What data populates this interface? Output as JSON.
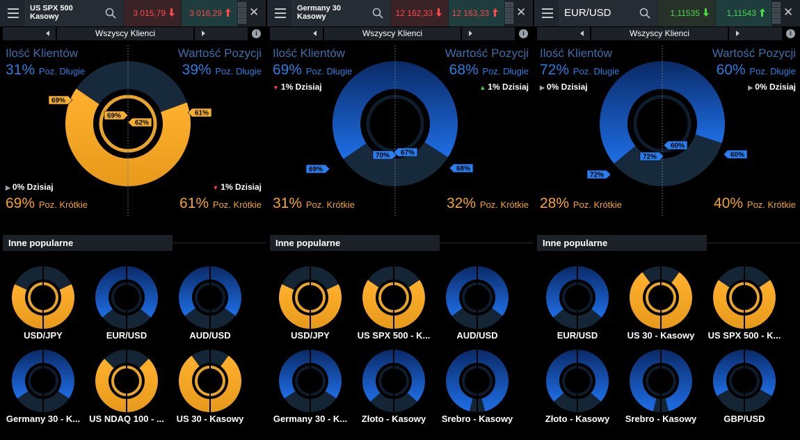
{
  "colors": {
    "long": "#1e6ee6",
    "short": "#f5a623",
    "ring_bg": "#142433",
    "panel_bg": "#000000",
    "header": "#1c2127"
  },
  "icons": {
    "menu": "hamburger-icon",
    "search": "search-icon",
    "close": "close-icon",
    "info": "info-icon",
    "down": "price-down-arrow-icon",
    "up": "price-up-arrow-icon"
  },
  "panels": [
    {
      "symbol": "US SPX 500 Kasowy",
      "symbol_line1": "US SPX 500",
      "symbol_line2": "Kasowy",
      "bid": "3 015,79",
      "bid_dir": "down",
      "ask": "3 016,29",
      "ask_dir": "up",
      "nav_label": "Wszyscy Klienci",
      "clients_title": "Ilość Klientów",
      "value_title": "Wartość Pozycji",
      "clients_long_pct": "31%",
      "value_long_pct": "39%",
      "long_label": "Poz. Długie",
      "clients_short_pct": "69%",
      "value_short_pct": "61%",
      "short_label": "Poz. Krótkie",
      "today_left": "0% Dzisiaj",
      "today_left_dir": "flat",
      "today_right": "1% Dzisiaj",
      "today_right_dir": "down",
      "today_pos": "bottom",
      "clients_long": 0.31,
      "value_long": 0.39,
      "tags": {
        "outer_left": "69%",
        "inner_left": "69%",
        "inner_right": "62%",
        "outer_right": "61%"
      },
      "tag_color": "short",
      "popular_title": "Inne popularne",
      "popular": [
        {
          "name": "USD/JPY",
          "long": 0.36
        },
        {
          "name": "EUR/USD",
          "long": 0.72
        },
        {
          "name": "AUD/USD",
          "long": 0.7
        },
        {
          "name": "Germany 30 - K...",
          "long": 0.69
        },
        {
          "name": "US NDAQ 100 - ...",
          "long": 0.25
        },
        {
          "name": "US 30 - Kasowy",
          "long": 0.2
        }
      ]
    },
    {
      "symbol": "Germany 30 Kasowy",
      "symbol_line1": "Germany 30",
      "symbol_line2": "Kasowy",
      "bid": "12 162,33",
      "bid_dir": "down",
      "ask": "12 163,33",
      "ask_dir": "up",
      "nav_label": "Wszyscy Klienci",
      "clients_title": "Ilość Klientów",
      "value_title": "Wartość Pozycji",
      "clients_long_pct": "69%",
      "value_long_pct": "68%",
      "long_label": "Poz. Długie",
      "clients_short_pct": "31%",
      "value_short_pct": "32%",
      "short_label": "Poz. Krótkie",
      "today_left": "1% Dzisiaj",
      "today_left_dir": "down",
      "today_right": "1% Dzisiaj",
      "today_right_dir": "up",
      "today_pos": "top",
      "clients_long": 0.69,
      "value_long": 0.68,
      "tags": {
        "outer_left": "69%",
        "inner_left": "70%",
        "inner_right": "67%",
        "outer_right": "68%"
      },
      "tag_color": "long",
      "popular_title": "Inne popularne",
      "popular": [
        {
          "name": "USD/JPY",
          "long": 0.36
        },
        {
          "name": "US SPX 500 - K...",
          "long": 0.31
        },
        {
          "name": "AUD/USD",
          "long": 0.7
        },
        {
          "name": "Germany 30 - K...",
          "long": 0.69
        },
        {
          "name": "Złoto - Kasowy",
          "long": 0.73
        },
        {
          "name": "Srebro - Kasowy",
          "long": 0.92
        }
      ]
    },
    {
      "symbol": "EUR/USD",
      "symbol_line1": "EUR/USD",
      "symbol_line2": "",
      "bid": "1,11535",
      "bid_dir": "down",
      "ask": "1,11543",
      "ask_dir": "up",
      "nav_label": "Wszyscy Klienci",
      "clients_title": "Ilość Klientów",
      "value_title": "Wartość Pozycji",
      "clients_long_pct": "72%",
      "value_long_pct": "60%",
      "long_label": "Poz. Długie",
      "clients_short_pct": "28%",
      "value_short_pct": "40%",
      "short_label": "Poz. Krótkie",
      "today_left": "0% Dzisiaj",
      "today_left_dir": "flat",
      "today_right": "0% Dzisiaj",
      "today_right_dir": "flat",
      "today_pos": "top",
      "clients_long": 0.72,
      "value_long": 0.6,
      "tags": {
        "outer_left": "72%",
        "inner_left": "72%",
        "inner_right": "60%",
        "outer_right": "60%"
      },
      "tag_color": "long",
      "popular_title": "Inne popularne",
      "popular": [
        {
          "name": "EUR/USD",
          "long": 0.72
        },
        {
          "name": "US 30 - Kasowy",
          "long": 0.2
        },
        {
          "name": "US SPX 500 - K...",
          "long": 0.31
        },
        {
          "name": "Złoto - Kasowy",
          "long": 0.73
        },
        {
          "name": "Srebro - Kasowy",
          "long": 0.92
        },
        {
          "name": "GBP/USD",
          "long": 0.66
        }
      ]
    }
  ]
}
